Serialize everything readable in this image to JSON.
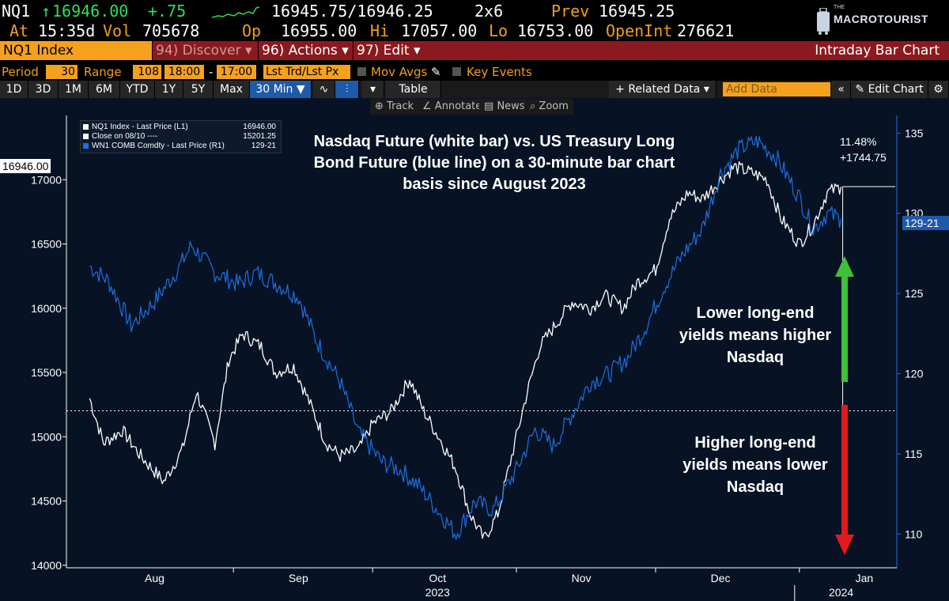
{
  "quote": {
    "ticker": "NQ1",
    "last": "16946.00",
    "change": "+.75",
    "bid_ask": "16945.75/16946.25",
    "size": "2x6",
    "prev_label": "Prev",
    "prev": "16945.25",
    "at_label": "At",
    "time": "15:35d",
    "vol_label": "Vol",
    "vol": "705678",
    "op_label": "Op",
    "open": "16955.00",
    "hi_label": "Hi",
    "high": "17057.00",
    "lo_label": "Lo",
    "low": "16753.00",
    "oi_label": "OpenInt",
    "open_interest": "276621"
  },
  "logo": {
    "the": "THE",
    "name": "MACROTOURIST"
  },
  "command": {
    "input": "NQ1 Index",
    "discover": "94) Discover",
    "actions": "96) Actions",
    "edit": "97) Edit",
    "chart_type": "Intraday Bar Chart"
  },
  "settings": {
    "period_label": "Period",
    "period": "30",
    "range_label": "Range",
    "range": "108",
    "start": "18:00",
    "dash": "-",
    "end": "17:00",
    "source": "Lst Trd/Lst Px",
    "mov_avgs": "Mov Avgs",
    "key_events": "Key Events"
  },
  "toolbar": {
    "periods": [
      "1D",
      "3D",
      "1M",
      "6M",
      "YTD",
      "1Y",
      "5Y",
      "Max"
    ],
    "active_period": "30 Min ▼",
    "table": "Table",
    "related": "+ Related Data ▾",
    "add_data_placeholder": "Add Data",
    "edit_chart": "Edit Chart"
  },
  "subtools": {
    "track": "Track",
    "annotate": "Annotate",
    "news": "News",
    "zoom": "Zoom"
  },
  "legend": [
    {
      "name": "NQ1 Index - Last Price (L1)",
      "value": "16946.00",
      "color": "#ffffff"
    },
    {
      "name": "Close on 08/10 ----",
      "value": "15201.25",
      "color": "#ffffff"
    },
    {
      "name": "WN1 COMB Comdty - Last Price (R1)",
      "value": "129-21",
      "color": "#1e6fe0"
    }
  ],
  "annotations": {
    "title": "Nasdaq Future (white bar) vs. US Treasury Long Bond Future (blue line) on a 30-minute bar chart basis since August 2023",
    "lower": "Lower long-end yields means higher Nasdaq",
    "higher": "Higher long-end yields means lower Nasdaq",
    "pct": "11.48%",
    "chg": "+1744.75",
    "last_left": "16946.00",
    "last_right": "129-21"
  },
  "chart_data": {
    "type": "line",
    "x_axis": {
      "labels": [
        "Aug",
        "Sep",
        "Oct",
        "Nov",
        "Dec",
        "Jan"
      ],
      "years": [
        "2023",
        "2024"
      ],
      "range": [
        "2023-08-01",
        "2024-01-10"
      ]
    },
    "left_axis": {
      "ticks": [
        14000,
        14500,
        15000,
        15500,
        16000,
        16500,
        17000
      ],
      "range": [
        13980,
        17500
      ]
    },
    "right_axis": {
      "ticks": [
        110,
        115,
        120,
        125,
        130,
        135
      ],
      "range": [
        107.9,
        136.1
      ]
    },
    "reference_line": {
      "label": "Close on 08/10",
      "value": 15201.25
    },
    "series": [
      {
        "name": "NQ1 Index - Last Price (L1)",
        "axis": "left",
        "color": "#ffffff",
        "points": [
          [
            "2023-08-01",
            15300
          ],
          [
            "2023-08-04",
            14950
          ],
          [
            "2023-08-08",
            15050
          ],
          [
            "2023-08-12",
            14850
          ],
          [
            "2023-08-17",
            14650
          ],
          [
            "2023-08-21",
            14900
          ],
          [
            "2023-08-24",
            15350
          ],
          [
            "2023-08-28",
            14950
          ],
          [
            "2023-08-31",
            15600
          ],
          [
            "2023-09-03",
            15800
          ],
          [
            "2023-09-07",
            15700
          ],
          [
            "2023-09-10",
            15500
          ],
          [
            "2023-09-14",
            15550
          ],
          [
            "2023-09-17",
            15300
          ],
          [
            "2023-09-21",
            14950
          ],
          [
            "2023-09-24",
            14850
          ],
          [
            "2023-09-28",
            14900
          ],
          [
            "2023-10-01",
            15100
          ],
          [
            "2023-10-05",
            15200
          ],
          [
            "2023-10-09",
            15450
          ],
          [
            "2023-10-12",
            15200
          ],
          [
            "2023-10-16",
            14950
          ],
          [
            "2023-10-19",
            14750
          ],
          [
            "2023-10-22",
            14400
          ],
          [
            "2023-10-25",
            14200
          ],
          [
            "2023-10-28",
            14400
          ],
          [
            "2023-10-31",
            14850
          ],
          [
            "2023-11-03",
            15300
          ],
          [
            "2023-11-06",
            15700
          ],
          [
            "2023-11-10",
            15900
          ],
          [
            "2023-11-13",
            16050
          ],
          [
            "2023-11-17",
            16000
          ],
          [
            "2023-11-20",
            16100
          ],
          [
            "2023-11-24",
            16000
          ],
          [
            "2023-11-27",
            16200
          ],
          [
            "2023-12-01",
            16300
          ],
          [
            "2023-12-04",
            16700
          ],
          [
            "2023-12-08",
            16900
          ],
          [
            "2023-12-11",
            16850
          ],
          [
            "2023-12-15",
            17000
          ],
          [
            "2023-12-18",
            17100
          ],
          [
            "2023-12-22",
            17050
          ],
          [
            "2023-12-25",
            17000
          ],
          [
            "2023-12-28",
            16700
          ],
          [
            "2024-01-01",
            16500
          ],
          [
            "2024-01-04",
            16650
          ],
          [
            "2024-01-07",
            16900
          ],
          [
            "2024-01-10",
            16946
          ]
        ]
      },
      {
        "name": "WN1 COMB Comdty - Last Price (R1)",
        "axis": "right",
        "color": "#1e6fe0",
        "points": [
          [
            "2023-08-01",
            126.7
          ],
          [
            "2023-08-05",
            125.8
          ],
          [
            "2023-08-10",
            123.0
          ],
          [
            "2023-08-15",
            124.5
          ],
          [
            "2023-08-20",
            126.5
          ],
          [
            "2023-08-23",
            128.0
          ],
          [
            "2023-08-28",
            126.3
          ],
          [
            "2023-09-02",
            125.6
          ],
          [
            "2023-09-06",
            126.3
          ],
          [
            "2023-09-11",
            125.5
          ],
          [
            "2023-09-15",
            124.8
          ],
          [
            "2023-09-19",
            122.0
          ],
          [
            "2023-09-24",
            119.5
          ],
          [
            "2023-09-28",
            116.3
          ],
          [
            "2023-10-03",
            114.5
          ],
          [
            "2023-10-07",
            114.0
          ],
          [
            "2023-10-11",
            113.0
          ],
          [
            "2023-10-15",
            111.5
          ],
          [
            "2023-10-19",
            110.0
          ],
          [
            "2023-10-23",
            112.0
          ],
          [
            "2023-10-27",
            111.5
          ],
          [
            "2023-11-01",
            114.0
          ],
          [
            "2023-11-05",
            116.5
          ],
          [
            "2023-11-09",
            115.5
          ],
          [
            "2023-11-13",
            117.5
          ],
          [
            "2023-11-17",
            119.5
          ],
          [
            "2023-11-21",
            120.0
          ],
          [
            "2023-11-25",
            121.0
          ],
          [
            "2023-11-29",
            123.0
          ],
          [
            "2023-12-03",
            125.5
          ],
          [
            "2023-12-07",
            127.5
          ],
          [
            "2023-12-11",
            129.0
          ],
          [
            "2023-12-15",
            132.5
          ],
          [
            "2023-12-19",
            134.0
          ],
          [
            "2023-12-23",
            134.5
          ],
          [
            "2023-12-27",
            133.5
          ],
          [
            "2024-01-01",
            131.0
          ],
          [
            "2024-01-04",
            129.0
          ],
          [
            "2024-01-07",
            130.0
          ],
          [
            "2024-01-10",
            129.66
          ]
        ]
      }
    ]
  }
}
